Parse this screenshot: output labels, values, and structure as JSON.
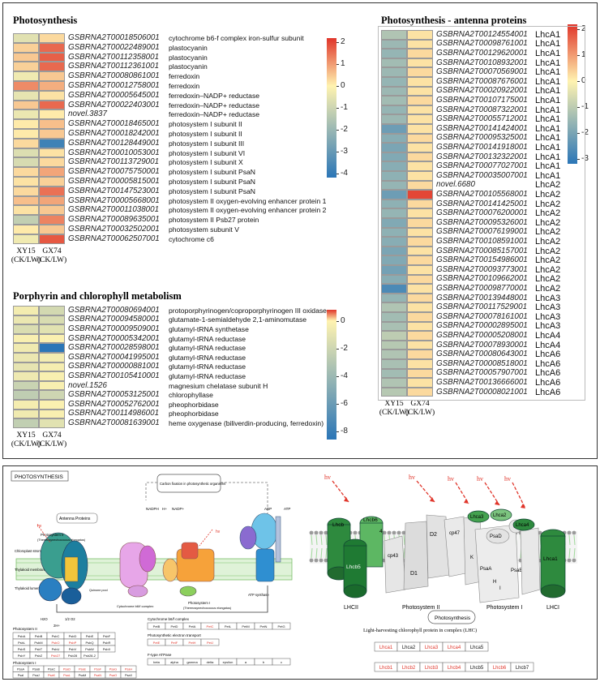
{
  "panels": {
    "photosynthesis": {
      "title": "Photosynthesis",
      "rows": [
        {
          "id": "GSBRNA2T00018506001",
          "desc": "cytochrome b6-f complex iron-sulfur subunit",
          "v": [
            -0.6,
            0.3
          ]
        },
        {
          "id": "GSBRNA2T00022489001",
          "desc": "plastocyanin",
          "v": [
            0.4,
            1.6
          ]
        },
        {
          "id": "GSBRNA2T00112358001",
          "desc": "plastocyanin",
          "v": [
            0.5,
            1.7
          ]
        },
        {
          "id": "GSBRNA2T00112361001",
          "desc": "plastocyanin",
          "v": [
            0.4,
            1.6
          ]
        },
        {
          "id": "GSBRNA2T00080861001",
          "desc": "ferredoxin",
          "v": [
            -0.3,
            0.5
          ]
        },
        {
          "id": "GSBRNA2T00012758001",
          "desc": "ferredoxin",
          "v": [
            1.2,
            0.8
          ]
        },
        {
          "id": "GSBRNA2T00005645001",
          "desc": "ferredoxin–NADP+ reductase",
          "v": [
            -0.5,
            0.2
          ]
        },
        {
          "id": "GSBRNA2T00022403001",
          "desc": "ferredoxin–NADP+ reductase",
          "v": [
            0.5,
            1.6
          ]
        },
        {
          "id": "novel.3837",
          "desc": "ferredoxin–NADP+ reductase",
          "v": [
            -0.4,
            0.1
          ]
        },
        {
          "id": "GSBRNA2T00018465001",
          "desc": "photosystem I subunit II",
          "v": [
            0.1,
            0.6
          ]
        },
        {
          "id": "GSBRNA2T00018242001",
          "desc": "photosystem I subunit II",
          "v": [
            0.1,
            0.5
          ]
        },
        {
          "id": "GSBRNA2T00128449001",
          "desc": "photosystem I subunit III",
          "v": [
            0.3,
            -3.8
          ]
        },
        {
          "id": "GSBRNA2T00010053001",
          "desc": "photosystem I subunit VI",
          "v": [
            -0.7,
            0.2
          ]
        },
        {
          "id": "GSBRNA2T00113729001",
          "desc": "photosystem I subunit X",
          "v": [
            -0.8,
            0.3
          ]
        },
        {
          "id": "GSBRNA2T00075750001",
          "desc": "photosystem I subunit PsaN",
          "v": [
            0.3,
            0.9
          ]
        },
        {
          "id": "GSBRNA2T00005815001",
          "desc": "photosystem I subunit PsaN",
          "v": [
            0.2,
            0.4
          ]
        },
        {
          "id": "GSBRNA2T00147523001",
          "desc": "photosystem I subunit PsaN",
          "v": [
            0.3,
            1.5
          ]
        },
        {
          "id": "GSBRNA2T00005668001",
          "desc": "photosystem II oxygen-evolving enhancer protein 1",
          "v": [
            0.6,
            0.9
          ]
        },
        {
          "id": "GSBRNA2T00011038001",
          "desc": "photosystem II oxygen-evolving enhancer protein 2",
          "v": [
            0.2,
            0.5
          ]
        },
        {
          "id": "GSBRNA2T00089635001",
          "desc": "photosystem II Psb27 protein",
          "v": [
            -1.2,
            1.3
          ]
        },
        {
          "id": "GSBRNA2T00032502001",
          "desc": "photosystem subunit V",
          "v": [
            0.1,
            0.5
          ]
        },
        {
          "id": "GSBRNA2T00062507001",
          "desc": "cytochrome c6",
          "v": [
            -0.3,
            1.8
          ]
        }
      ],
      "col_labels": [
        [
          "XY15",
          "(CK/LW)"
        ],
        [
          "GX74",
          "(CK/LW)"
        ]
      ],
      "ticks": [
        "2",
        "1",
        "0",
        "-1",
        "-2",
        "-3",
        "-4"
      ]
    },
    "antenna": {
      "title": "Photosynthesis - antenna proteins",
      "rows": [
        {
          "id": "GSBRNA2T00124554001",
          "name": "LhcA1",
          "v": [
            -1.2,
            0.2
          ]
        },
        {
          "id": "GSBRNA2T00098761001",
          "name": "LhcA1",
          "v": [
            -1.5,
            0.2
          ]
        },
        {
          "id": "GSBRNA2T00129620001",
          "name": "LhcA1",
          "v": [
            -1.6,
            0.3
          ]
        },
        {
          "id": "GSBRNA2T00108932001",
          "name": "LhcA1",
          "v": [
            -1.4,
            0.2
          ]
        },
        {
          "id": "GSBRNA2T00070569001",
          "name": "LhcA1",
          "v": [
            -1.5,
            0.3
          ]
        },
        {
          "id": "GSBRNA2T00087676001",
          "name": "LhcA1",
          "v": [
            -1.6,
            0.2
          ]
        },
        {
          "id": "GSBRNA2T00020922001",
          "name": "LhcA1",
          "v": [
            -1.5,
            0.2
          ]
        },
        {
          "id": "GSBRNA2T00107175001",
          "name": "LhcA1",
          "v": [
            -1.4,
            0.3
          ]
        },
        {
          "id": "GSBRNA2T00087322001",
          "name": "LhcA1",
          "v": [
            -1.6,
            0.2
          ]
        },
        {
          "id": "GSBRNA2T00055712001",
          "name": "LhcA1",
          "v": [
            -1.5,
            0.2
          ]
        },
        {
          "id": "GSBRNA2T00141424001",
          "name": "LhcA1",
          "v": [
            -2.2,
            0.2
          ]
        },
        {
          "id": "GSBRNA2T00095325001",
          "name": "LhcA1",
          "v": [
            -1.8,
            0.3
          ]
        },
        {
          "id": "GSBRNA2T00141918001",
          "name": "LhcA1",
          "v": [
            -2.0,
            0.2
          ]
        },
        {
          "id": "GSBRNA2T00132322001",
          "name": "LhcA1",
          "v": [
            -1.9,
            0.3
          ]
        },
        {
          "id": "GSBRNA2T00077027001",
          "name": "LhcA1",
          "v": [
            -1.8,
            0.2
          ]
        },
        {
          "id": "GSBRNA2T00035007001",
          "name": "LhcA1",
          "v": [
            -1.7,
            0.2
          ]
        },
        {
          "id": "novel.6680",
          "name": "LhcA2",
          "v": [
            -1.6,
            0.3
          ]
        },
        {
          "id": "GSBRNA2T00105568001",
          "name": "LhcA2",
          "v": [
            -2.2,
            2.0
          ]
        },
        {
          "id": "GSBRNA2T00141425001",
          "name": "LhcA2",
          "v": [
            -1.7,
            0.3
          ]
        },
        {
          "id": "GSBRNA2T00076200001",
          "name": "LhcA2",
          "v": [
            -1.6,
            0.2
          ]
        },
        {
          "id": "GSBRNA2T00095326001",
          "name": "LhcA2",
          "v": [
            -1.9,
            0.3
          ]
        },
        {
          "id": "GSBRNA2T00076199001",
          "name": "LhcA2",
          "v": [
            -1.7,
            0.2
          ]
        },
        {
          "id": "GSBRNA2T00108591001",
          "name": "LhcA2",
          "v": [
            -1.8,
            0.3
          ]
        },
        {
          "id": "GSBRNA2T00085157001",
          "name": "LhcA2",
          "v": [
            -2.0,
            0.2
          ]
        },
        {
          "id": "GSBRNA2T00154986001",
          "name": "LhcA2",
          "v": [
            -1.9,
            0.3
          ]
        },
        {
          "id": "GSBRNA2T00093773001",
          "name": "LhcA2",
          "v": [
            -2.1,
            0.2
          ]
        },
        {
          "id": "GSBRNA2T00109662001",
          "name": "LhcA2",
          "v": [
            -1.8,
            0.3
          ]
        },
        {
          "id": "GSBRNA2T00098770001",
          "name": "LhcA2",
          "v": [
            -2.7,
            0.2
          ]
        },
        {
          "id": "GSBRNA2T00139448001",
          "name": "LhcA3",
          "v": [
            -1.6,
            0.3
          ]
        },
        {
          "id": "GSBRNA2T00117529001",
          "name": "LhcA3",
          "v": [
            -1.2,
            0.2
          ]
        },
        {
          "id": "GSBRNA2T00078161001",
          "name": "LhcA3",
          "v": [
            -1.4,
            0.3
          ]
        },
        {
          "id": "GSBRNA2T00002895001",
          "name": "LhcA3",
          "v": [
            -1.3,
            0.2
          ]
        },
        {
          "id": "GSBRNA2T00005208001",
          "name": "LhcA4",
          "v": [
            -1.0,
            0.3
          ]
        },
        {
          "id": "GSBRNA2T00078930001",
          "name": "LhcA4",
          "v": [
            -1.1,
            0.2
          ]
        },
        {
          "id": "GSBRNA2T00080643001",
          "name": "LhcA6",
          "v": [
            -1.2,
            0.3
          ]
        },
        {
          "id": "GSBRNA2T00008518001",
          "name": "LhcA6",
          "v": [
            -1.3,
            0.2
          ]
        },
        {
          "id": "GSBRNA2T00057907001",
          "name": "LhcA6",
          "v": [
            -1.4,
            0.3
          ]
        },
        {
          "id": "GSBRNA2T00136666001",
          "name": "LhcA6",
          "v": [
            -1.2,
            0.2
          ]
        },
        {
          "id": "GSBRNA2T00008021001",
          "name": "LhcA6",
          "v": [
            -1.1,
            0.3
          ]
        }
      ],
      "col_labels": [
        [
          "XY15",
          "(CK/LW)"
        ],
        [
          "GX74",
          "(CK/LW)"
        ]
      ],
      "ticks": [
        "2",
        "1",
        "0",
        "-1",
        "-2",
        "-3"
      ]
    },
    "porphyrin": {
      "title": "Porphyrin and chlorophyll metabolism",
      "rows": [
        {
          "id": "GSBRNA2T00080694001",
          "desc": "protoporphyrinogen/coproporphyrinogen III oxidase",
          "v": [
            -0.5,
            -1.8
          ]
        },
        {
          "id": "GSBRNA2T00094580001",
          "desc": "glutamate-1-semialdehyde 2,1-aminomutase",
          "v": [
            -0.8,
            -1.6
          ]
        },
        {
          "id": "GSBRNA2T00009509001",
          "desc": "glutamyl-tRNA synthetase",
          "v": [
            -1.5,
            -1.2
          ]
        },
        {
          "id": "GSBRNA2T00005342001",
          "desc": "glutamyl-tRNA reductase",
          "v": [
            -0.3,
            -0.2
          ]
        },
        {
          "id": "GSBRNA2T00028598001",
          "desc": "glutamyl-tRNA reductase",
          "v": [
            -0.6,
            -8.6
          ]
        },
        {
          "id": "GSBRNA2T00041995001",
          "desc": "glutamyl-tRNA reductase",
          "v": [
            -0.8,
            -0.5
          ]
        },
        {
          "id": "GSBRNA2T00000881001",
          "desc": "glutamyl-tRNA reductase",
          "v": [
            -1.0,
            -0.4
          ]
        },
        {
          "id": "GSBRNA2T00105410001",
          "desc": "glutamyl-tRNA reductase",
          "v": [
            -0.7,
            -0.3
          ]
        },
        {
          "id": "novel.1526",
          "desc": "magnesium chelatase subunit H",
          "v": [
            -2.2,
            -0.3
          ]
        },
        {
          "id": "GSBRNA2T00053125001",
          "desc": "chlorophyllase",
          "v": [
            -2.6,
            -2.0
          ]
        },
        {
          "id": "GSBRNA2T00052762001",
          "desc": "pheophorbidase",
          "v": [
            -0.4,
            -0.2
          ]
        },
        {
          "id": "GSBRNA2T00114986001",
          "desc": "pheophorbidase",
          "v": [
            -0.6,
            -0.3
          ]
        },
        {
          "id": "GSBRNA2T00081639001",
          "desc": "heme oxygenase (biliverdin-producing, ferredoxin)",
          "v": [
            -2.5,
            -1.2
          ]
        }
      ],
      "col_labels": [
        [
          "XY15",
          "(CK/LW)"
        ],
        [
          "GX74",
          "(CK/LW)"
        ]
      ],
      "ticks": [
        "0",
        "-2",
        "-4",
        "-6",
        "-8"
      ]
    }
  },
  "pathway": {
    "title": "PHOTOSYNTHESIS",
    "labels": {
      "carbon_fixation": "Carbon fixation in photosynthetic organisms",
      "antenna": "Antenna Proteins",
      "nadph": "NADPH",
      "nadp": "NADP+",
      "h_plus": "H+",
      "atp": "ATP",
      "adp": "ADP",
      "chloroplast_stroma": "Chloroplast stroma",
      "thylakoid_membrane": "Thylakoid membrane",
      "thylakoid_lumen": "Thylakoid lumen",
      "psii": "Photosystem II",
      "psii_sub": "(Thermosynechococcus elongatus)",
      "psi": "Photosystem I",
      "psi_sub": "(Thermosynechococcus elongatus)",
      "cytb6f": "Cytochrome b6/f complex",
      "atp_synthase": "ATP synthase",
      "quinone_pool": "Quinone pool",
      "hv": "hν",
      "water": "H2O",
      "oxygen": "1/2 O2",
      "proton_2h": "2H+"
    },
    "tables": {
      "psii_title": "Photosystem II",
      "psii_rows": [
        [
          "PsbA",
          "PsbB",
          "PsbC",
          "PsbD",
          "PsbE",
          "PsbF"
        ],
        [
          "PsbL",
          "PsbM",
          "PsbO",
          "PsbP",
          "PsbQ",
          "PsbR"
        ],
        [
          "PsbS",
          "PsbT",
          "PsbU",
          "PsbV",
          "PsbW",
          "PsbX"
        ],
        [
          "PsbY",
          "PsbZ",
          "Psb27",
          "Psb28",
          "Psb28-2",
          ""
        ]
      ],
      "psii_red": [
        "PsbO",
        "PsbP",
        "Psb27"
      ],
      "psi_title": "Photosystem I",
      "psi_rows": [
        [
          "PsaA",
          "PsaB",
          "PsaC",
          "PsaD",
          "PsaE",
          "PsaF",
          "PsaG",
          "PsaH"
        ],
        [
          "PsaI",
          "PsaJ",
          "PsaK",
          "PsaL",
          "PsaM",
          "PsaN",
          "PsaO",
          "PsaX"
        ]
      ],
      "psi_red": [
        "PsaD",
        "PsaE",
        "PsaF",
        "PsaG",
        "PsaH",
        "PsaK",
        "PsaL",
        "PsaN",
        "PsaO"
      ],
      "cyt_title": "Cytochrome b6/f complex",
      "cyt_row": [
        "PetB",
        "PetD",
        "PetA",
        "PetC",
        "PetL",
        "PetM",
        "PetN",
        "PetG"
      ],
      "cyt_red": [
        "PetC"
      ],
      "pet_title": "Photosynthetic electron transport",
      "pet_row": [
        "PetE",
        "PetF",
        "PetH",
        "PetJ"
      ],
      "pet_red": [
        "PetE",
        "PetF",
        "PetH",
        "PetJ"
      ],
      "atp_title": "F-type ATPase",
      "atp_row": [
        "beta",
        "alpha",
        "gamma",
        "delta",
        "epsilon",
        "a",
        "b",
        "c"
      ]
    }
  },
  "lhc_diagram": {
    "hv": "hv",
    "labels": {
      "lhcb6": "Lhcb6",
      "lhcb5": "Lhcb5",
      "lhcb_a": "Lhcb",
      "n4": "4",
      "cp43": "cp43",
      "cp47": "cp47",
      "d1": "D1",
      "d2": "D2",
      "lhcii": "LHCII",
      "psii": "Photosystem II",
      "lhca3": "Lhca3",
      "lhca2": "Lhca2",
      "lhca4": "Lhca4",
      "lhca1": "Lhca1",
      "psad": "PsaD",
      "psaa": "PsaA",
      "psab": "PsaB",
      "psi": "Photosystem I",
      "lhci": "LHCI",
      "photosynthesis": "Photosynthesis",
      "c": "C",
      "e": "E",
      "f": "F",
      "h": "H",
      "i": "I",
      "k": "K"
    },
    "table_title": "Light-harvesting chlorophyll protein in complex (LHC)",
    "lhca": [
      "Lhca1",
      "Lhca2",
      "Lhca3",
      "Lhca4",
      "Lhca5"
    ],
    "lhca_red": [
      "Lhca1",
      "Lhca3",
      "Lhca4"
    ],
    "lhcb": [
      "Lhcb1",
      "Lhcb2",
      "Lhcb3",
      "Lhcb4",
      "Lhcb5",
      "Lhcb6",
      "Lhcb7"
    ],
    "lhcb_red": [
      "Lhcb1",
      "Lhcb2",
      "Lhcb3",
      "Lhcb4",
      "Lhcb6"
    ]
  },
  "colors": {
    "red": "#e0352a",
    "yellow": "#fff3b0",
    "blue": "#2b76b7",
    "border": "#333333",
    "dark_green": "#1f7a33",
    "light_green": "#9fd99a"
  }
}
